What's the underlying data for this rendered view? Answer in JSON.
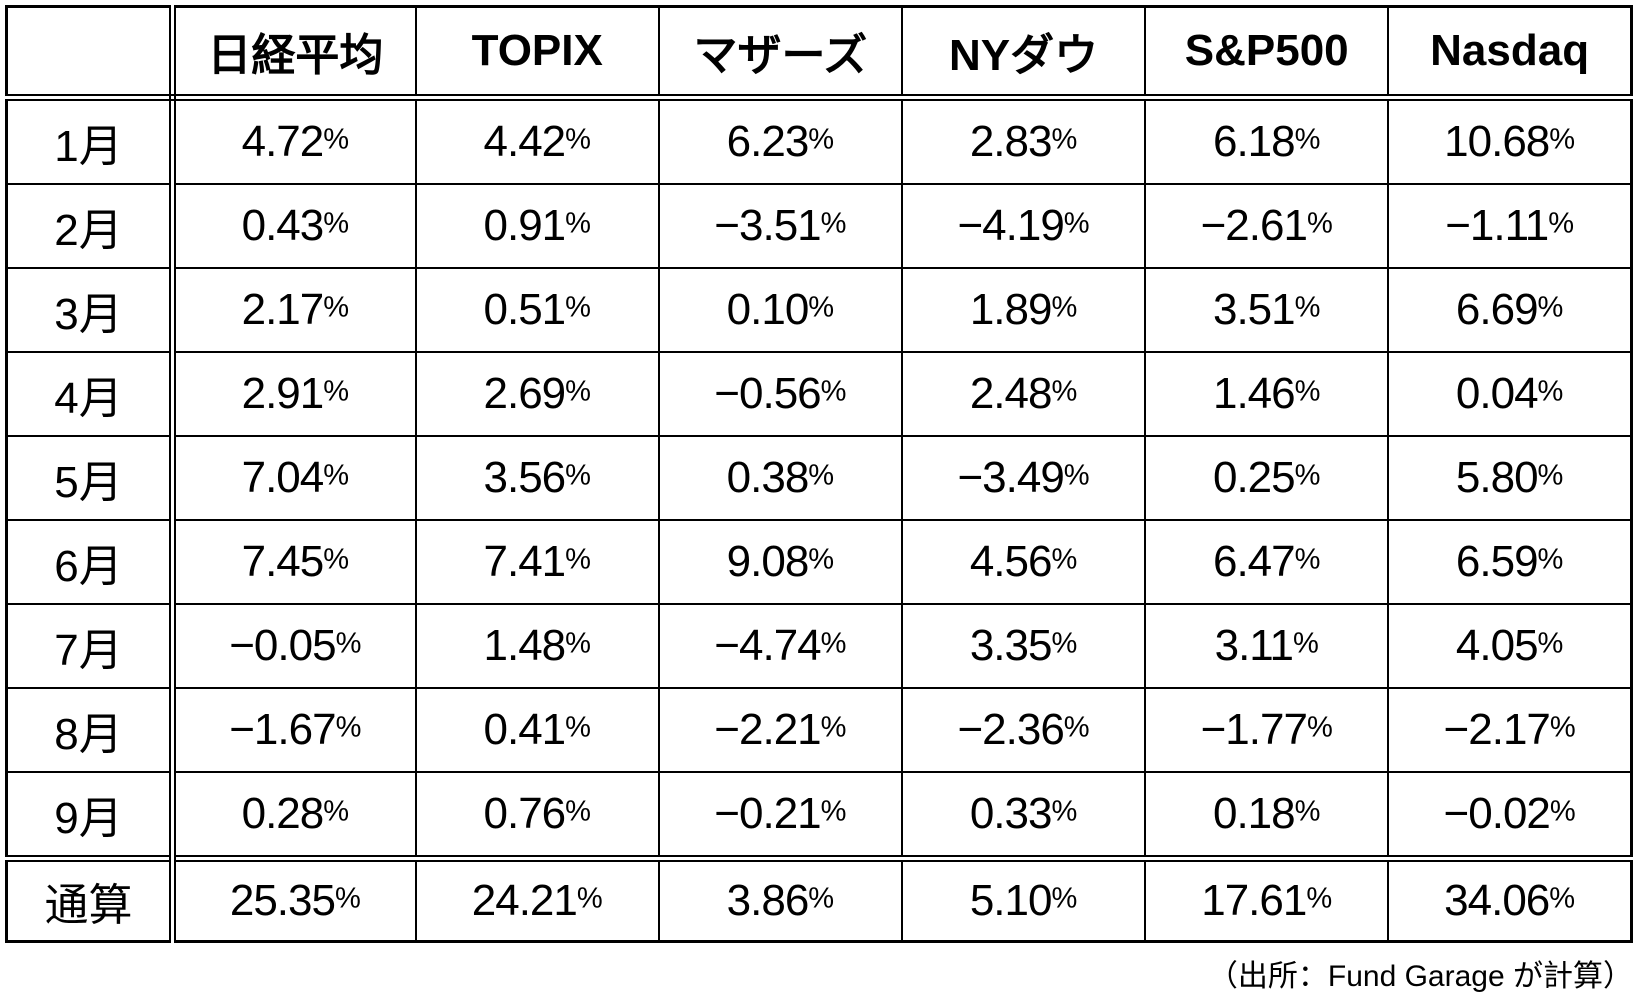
{
  "table": {
    "corner_label": "",
    "columns": [
      "日経平均",
      "TOPIX",
      "マザーズ",
      "NYダウ",
      "S&P500",
      "Nasdaq"
    ],
    "rows": [
      {
        "label": "1月",
        "values": [
          "4.72%",
          "4.42%",
          "6.23%",
          "2.83%",
          "6.18%",
          "10.68%"
        ]
      },
      {
        "label": "2月",
        "values": [
          "0.43%",
          "0.91%",
          "−3.51%",
          "−4.19%",
          "−2.61%",
          "−1.11%"
        ]
      },
      {
        "label": "3月",
        "values": [
          "2.17%",
          "0.51%",
          "0.10%",
          "1.89%",
          "3.51%",
          "6.69%"
        ]
      },
      {
        "label": "4月",
        "values": [
          "2.91%",
          "2.69%",
          "−0.56%",
          "2.48%",
          "1.46%",
          "0.04%"
        ]
      },
      {
        "label": "5月",
        "values": [
          "7.04%",
          "3.56%",
          "0.38%",
          "−3.49%",
          "0.25%",
          "5.80%"
        ]
      },
      {
        "label": "6月",
        "values": [
          "7.45%",
          "7.41%",
          "9.08%",
          "4.56%",
          "6.47%",
          "6.59%"
        ]
      },
      {
        "label": "7月",
        "values": [
          "−0.05%",
          "1.48%",
          "−4.74%",
          "3.35%",
          "3.11%",
          "4.05%"
        ]
      },
      {
        "label": "8月",
        "values": [
          "−1.67%",
          "0.41%",
          "−2.21%",
          "−2.36%",
          "−1.77%",
          "−2.17%"
        ]
      },
      {
        "label": "9月",
        "values": [
          "0.28%",
          "0.76%",
          "−0.21%",
          "0.33%",
          "0.18%",
          "−0.02%"
        ]
      }
    ],
    "total_row": {
      "label": "通算",
      "values": [
        "25.35%",
        "24.21%",
        "3.86%",
        "5.10%",
        "17.61%",
        "34.06%"
      ]
    }
  },
  "footer": {
    "source_note": "（出所：Fund Garage が計算）"
  },
  "colors": {
    "background": "#ffffff",
    "text": "#000000",
    "border": "#000000"
  },
  "chart_data": {
    "type": "table",
    "title": "",
    "unit": "%",
    "categories": [
      "1月",
      "2月",
      "3月",
      "4月",
      "5月",
      "6月",
      "7月",
      "8月",
      "9月",
      "通算"
    ],
    "series": [
      {
        "name": "日経平均",
        "values": [
          4.72,
          0.43,
          2.17,
          2.91,
          7.04,
          7.45,
          -0.05,
          -1.67,
          0.28,
          25.35
        ]
      },
      {
        "name": "TOPIX",
        "values": [
          4.42,
          0.91,
          0.51,
          2.69,
          3.56,
          7.41,
          1.48,
          0.41,
          0.76,
          24.21
        ]
      },
      {
        "name": "マザーズ",
        "values": [
          6.23,
          -3.51,
          0.1,
          -0.56,
          0.38,
          9.08,
          -4.74,
          -2.21,
          -0.21,
          3.86
        ]
      },
      {
        "name": "NYダウ",
        "values": [
          2.83,
          -4.19,
          1.89,
          2.48,
          -3.49,
          4.56,
          3.35,
          -2.36,
          0.33,
          5.1
        ]
      },
      {
        "name": "S&P500",
        "values": [
          6.18,
          -2.61,
          3.51,
          1.46,
          0.25,
          6.47,
          3.11,
          -1.77,
          0.18,
          17.61
        ]
      },
      {
        "name": "Nasdaq",
        "values": [
          10.68,
          -1.11,
          6.69,
          0.04,
          5.8,
          6.59,
          4.05,
          -2.17,
          -0.02,
          34.06
        ]
      }
    ],
    "source_note": "（出所：Fund Garage が計算）"
  }
}
